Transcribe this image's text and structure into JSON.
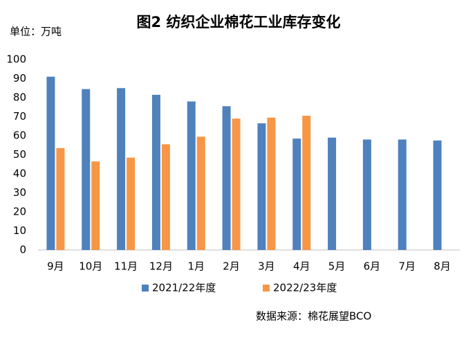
{
  "chart_data": {
    "type": "bar",
    "title": "图2  纺织企业棉花工业库存变化",
    "y_axis_label": "单位：万吨",
    "source": "数据来源：棉花展望BCO",
    "categories": [
      "9月",
      "10月",
      "11月",
      "12月",
      "1月",
      "2月",
      "3月",
      "4月",
      "5月",
      "6月",
      "7月",
      "8月"
    ],
    "series": [
      {
        "name": "2021/22年度",
        "color": "#4f81bd",
        "values": [
          91,
          84.5,
          85,
          81.5,
          78,
          75.5,
          66.5,
          58.5,
          59,
          58,
          58,
          57.5
        ]
      },
      {
        "name": "2022/23年度",
        "color": "#f79646",
        "values": [
          53.5,
          46.5,
          48.5,
          55.5,
          59.5,
          69,
          69.5,
          70.5,
          null,
          null,
          null,
          null
        ]
      }
    ],
    "ylim": [
      0,
      100
    ],
    "yticks": [
      0,
      10,
      20,
      30,
      40,
      50,
      60,
      70,
      80,
      90,
      100
    ],
    "grid": false
  }
}
